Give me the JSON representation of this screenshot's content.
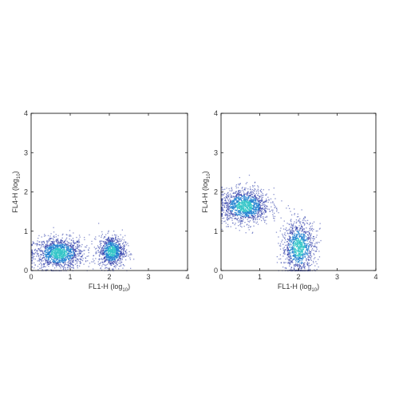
{
  "chart_data": [
    {
      "type": "scatter",
      "panel": "left",
      "xlabel": "FL1-H (log",
      "xlabel_sub": "10",
      "xlabel_close": ")",
      "ylabel": "FL4-H (log",
      "ylabel_sub": "10",
      "ylabel_close": ")",
      "xlim": [
        0,
        4
      ],
      "ylim": [
        0,
        4
      ],
      "xticks": [
        "0",
        "1",
        "2",
        "3",
        "4"
      ],
      "yticks": [
        "0",
        "1",
        "2",
        "3",
        "4"
      ],
      "grid": false,
      "clusters": [
        {
          "center": [
            0.7,
            0.45
          ],
          "spread": [
            0.32,
            0.2
          ],
          "count": 1300
        },
        {
          "center": [
            2.05,
            0.5
          ],
          "spread": [
            0.17,
            0.2
          ],
          "count": 900
        }
      ]
    },
    {
      "type": "scatter",
      "panel": "right",
      "xlabel": "FL1-H (log",
      "xlabel_sub": "10",
      "xlabel_close": ")",
      "ylabel": "FL4-H (log",
      "ylabel_sub": "10",
      "ylabel_close": ")",
      "xlim": [
        0,
        4
      ],
      "ylim": [
        0,
        4
      ],
      "xticks": [
        "0",
        "1",
        "2",
        "3",
        "4"
      ],
      "yticks": [
        "0",
        "1",
        "2",
        "3",
        "4"
      ],
      "grid": false,
      "clusters": [
        {
          "center": [
            0.6,
            1.65
          ],
          "spread": [
            0.32,
            0.22
          ],
          "count": 1300
        },
        {
          "center": [
            2.0,
            0.6
          ],
          "spread": [
            0.22,
            0.35
          ],
          "count": 1000
        }
      ]
    }
  ],
  "colors": {
    "low": "#2b3aa8",
    "mid": "#1e7fd0",
    "high": "#35c6c8",
    "frame": "#000000"
  }
}
